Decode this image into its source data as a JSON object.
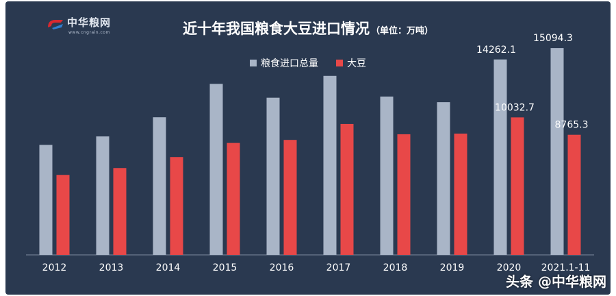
{
  "logo": {
    "name": "中华粮网",
    "url": "www.cngrain.com"
  },
  "watermark": "头条 @中华粮网",
  "chart_data": {
    "type": "bar",
    "title": "近十年我国粮食大豆进口情况",
    "title_unit": "（单位：万吨）",
    "categories": [
      "2012",
      "2013",
      "2014",
      "2015",
      "2016",
      "2017",
      "2018",
      "2019",
      "2020",
      "2021.1-11"
    ],
    "series": [
      {
        "name": "粮食进口总量",
        "color": "#a9b5c7",
        "values": [
          8025,
          8645,
          10042,
          12477,
          11468,
          13062,
          11555,
          11144,
          14262.1,
          15094.3
        ]
      },
      {
        "name": "大豆",
        "color": "#e84848",
        "values": [
          5838,
          6338,
          7140,
          8169,
          8391,
          9553,
          8803,
          8851,
          10032.7,
          8765.3
        ]
      }
    ],
    "data_labels": [
      {
        "series": 0,
        "index": 8,
        "text": "14262.1"
      },
      {
        "series": 0,
        "index": 9,
        "text": "15094.3"
      },
      {
        "series": 1,
        "index": 8,
        "text": "10032.7"
      },
      {
        "series": 1,
        "index": 9,
        "text": "8765.3"
      }
    ],
    "ylim": [
      0,
      17000
    ],
    "legend_position": "top-center",
    "grid": false
  }
}
